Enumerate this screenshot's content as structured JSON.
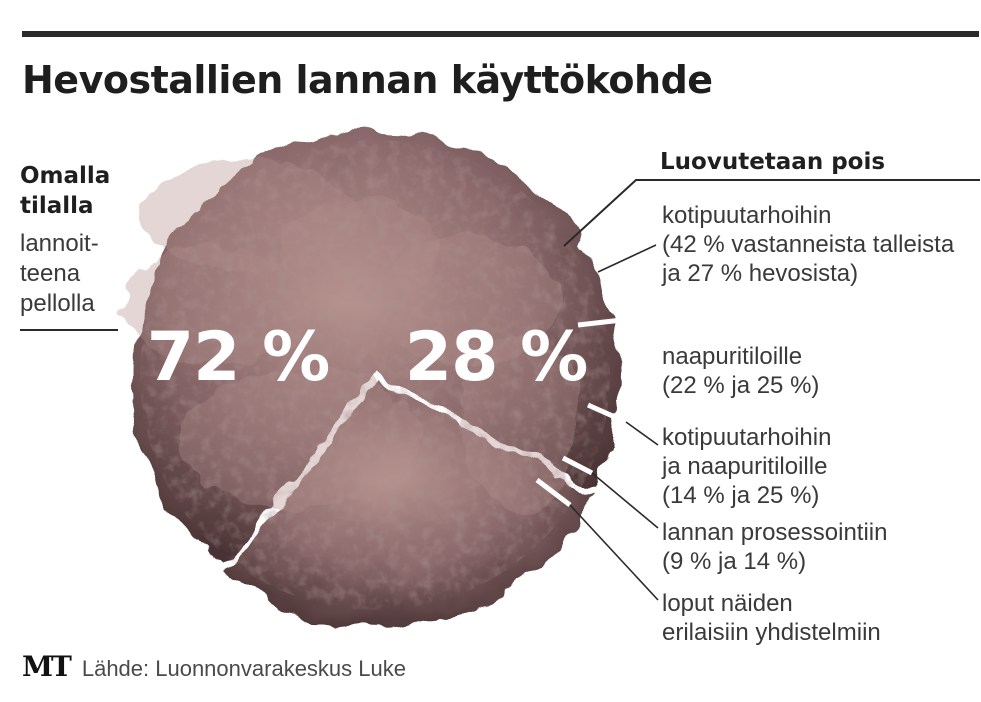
{
  "title": "Hevostallien lannan käyttökohde",
  "left_label": {
    "heading_line1": "Omalla",
    "heading_line2": "tilalla",
    "line1": "lannoit-",
    "line2": "teena",
    "line3": "pellolla"
  },
  "right_heading": "Luovutetaan pois",
  "sub_labels": [
    {
      "line1": "kotipuutarhoihin",
      "line2": "(42 % vastanneista talleista",
      "line3": "ja 27 % hevosista)"
    },
    {
      "line1": "naapuritiloille",
      "line2": "(22 % ja 25 %)"
    },
    {
      "line1": "kotipuutarhoihin",
      "line2": "ja naapuritiloille",
      "line3": "(14 % ja 25 %)"
    },
    {
      "line1": "lannan prosessointiin",
      "line2": "(9 % ja 14 %)"
    },
    {
      "line1": "loput näiden",
      "line2": "erilaisiin yhdistelmiin"
    }
  ],
  "footer": {
    "logo": "MT",
    "source": "Lähde: Luonnonvarakeskus Luke"
  },
  "colors": {
    "manure_base": "#8c6a6c",
    "manure_light": "#b08d8a",
    "manure_dark": "#4a3334",
    "text": "#2a2a2a"
  },
  "chart_data": {
    "type": "pie",
    "title": "Hevostallien lannan käyttökohde",
    "slices": [
      {
        "label": "Omalla tilalla lannoitteena pellolla",
        "value": 72,
        "display": "72 %"
      },
      {
        "label": "Luovutetaan pois",
        "value": 28,
        "display": "28 %"
      }
    ],
    "breakdown_of_luovutetaan_pois": [
      {
        "label": "kotipuutarhoihin",
        "stables_pct": 42,
        "horses_pct": 27
      },
      {
        "label": "naapuritiloille",
        "stables_pct": 22,
        "horses_pct": 25
      },
      {
        "label": "kotipuutarhoihin ja naapuritiloille",
        "stables_pct": 14,
        "horses_pct": 25
      },
      {
        "label": "lannan prosessointiin",
        "stables_pct": 9,
        "horses_pct": 14
      },
      {
        "label": "loput näiden erilaisiin yhdistelmiin"
      }
    ],
    "legend": "none"
  }
}
